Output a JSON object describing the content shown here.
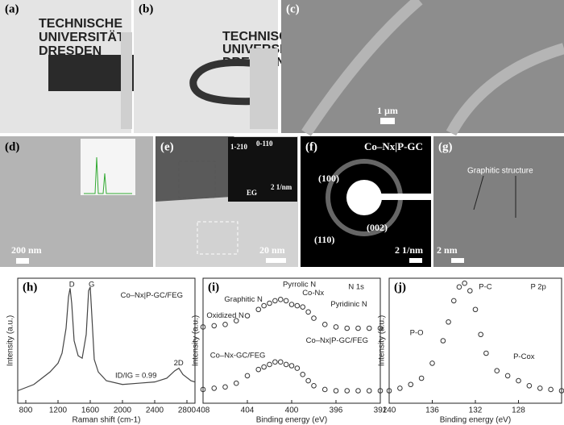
{
  "panels": [
    {
      "label": "(a)",
      "logo": [
        "TECHNISCHE",
        "UNIVERSITÄT",
        "DRESDEN"
      ]
    },
    {
      "label": "(b)",
      "logo": [
        "TECHNISCHE",
        "UNIVERSITÄT",
        "DRESDEN"
      ]
    },
    {
      "label": "(c)",
      "scale": "1 µm"
    },
    {
      "label": "(d)",
      "scale": "200 nm"
    },
    {
      "label": "(e)",
      "scale": "20 nm",
      "inset": [
        "1-210",
        "0-110",
        "2 1/nm",
        "EG"
      ]
    },
    {
      "label": "(f)",
      "title": "Co–Nx|P-GC",
      "rings": [
        "(100)",
        "(110)",
        "(002)"
      ],
      "scale": "2 1/nm"
    },
    {
      "label": "(g)",
      "annotation": "Graphitic structure",
      "scale": "2 nm"
    }
  ],
  "chart_data": [
    {
      "type": "line",
      "label": "(h)",
      "xlabel": "Raman shift (cm-1)",
      "ylabel": "Intensity (a.u.)",
      "xlim": [
        700,
        2900
      ],
      "xticks": [
        800,
        1200,
        1600,
        2000,
        2400,
        2800
      ],
      "ylim": [
        0,
        10
      ],
      "annotations": [
        "D",
        "G",
        "2D",
        "ID/IG = 0.99"
      ],
      "x": [
        700,
        900,
        1000,
        1100,
        1200,
        1250,
        1300,
        1330,
        1350,
        1370,
        1400,
        1450,
        1500,
        1550,
        1580,
        1600,
        1620,
        1650,
        1700,
        1800,
        2000,
        2200,
        2400,
        2550,
        2650,
        2700,
        2750,
        2850,
        2900
      ],
      "series": [
        {
          "name": "Co–Nx|P-GC/FEG",
          "color": "#444",
          "values": [
            1.0,
            1.5,
            2.0,
            2.5,
            3.2,
            4.0,
            6.0,
            8.5,
            9.2,
            8.0,
            5.0,
            3.8,
            3.6,
            5.5,
            9.0,
            9.3,
            7.0,
            3.5,
            2.5,
            1.8,
            1.5,
            1.6,
            1.7,
            2.0,
            2.6,
            2.8,
            2.3,
            1.8,
            1.7
          ]
        }
      ]
    },
    {
      "type": "scatter",
      "label": "(i)",
      "xlabel": "Binding energy (eV)",
      "ylabel": "Intensity (a.u.)",
      "xlim": [
        408,
        392
      ],
      "xticks": [
        408,
        404,
        400,
        396,
        392
      ],
      "ylim": [
        0,
        10
      ],
      "annotations": [
        "N 1s",
        "Graphitic N",
        "Pyrrolic N",
        "Co-Nx",
        "Pyridinic N",
        "Oxidized N"
      ],
      "x": [
        408,
        407,
        406,
        405,
        404,
        403,
        402.5,
        402,
        401.5,
        401,
        400.5,
        400,
        399.5,
        399,
        398.5,
        398,
        397,
        396,
        395,
        394,
        393,
        392
      ],
      "series": [
        {
          "name": "Co–Nx|P-GC/FEG",
          "color": "#333",
          "values": [
            6.1,
            6.2,
            6.3,
            6.6,
            7.0,
            7.5,
            7.8,
            8.0,
            8.2,
            8.3,
            8.2,
            7.9,
            7.8,
            7.7,
            7.3,
            6.8,
            6.3,
            6.1,
            6.0,
            6.0,
            6.0,
            6.0
          ]
        },
        {
          "name": "Co–Nx-GC/FEG",
          "color": "#333",
          "values": [
            1.1,
            1.2,
            1.3,
            1.6,
            2.2,
            2.7,
            2.9,
            3.1,
            3.3,
            3.3,
            3.1,
            3.0,
            2.8,
            2.3,
            1.8,
            1.4,
            1.1,
            1.0,
            1.0,
            1.0,
            1.0,
            1.0
          ]
        }
      ]
    },
    {
      "type": "scatter",
      "label": "(j)",
      "xlabel": "Binding energy (eV)",
      "ylabel": "Intensity (a.u.)",
      "xlim": [
        140,
        124
      ],
      "xticks": [
        140,
        136,
        132,
        128
      ],
      "ylim": [
        0,
        10
      ],
      "annotations": [
        "P 2p",
        "P-C",
        "P-O",
        "P-Cox"
      ],
      "x": [
        140,
        139,
        138,
        137,
        136,
        135,
        134.5,
        134,
        133.5,
        133,
        132.5,
        132,
        131.5,
        131,
        130,
        129,
        128,
        127,
        126,
        125,
        124
      ],
      "series": [
        {
          "name": "P 2p",
          "color": "#333",
          "values": [
            1.0,
            1.2,
            1.5,
            2.0,
            3.2,
            5.0,
            6.5,
            8.2,
            9.3,
            9.6,
            9.0,
            7.5,
            5.5,
            4.0,
            2.6,
            2.2,
            1.8,
            1.4,
            1.2,
            1.1,
            1.0
          ]
        }
      ]
    }
  ]
}
